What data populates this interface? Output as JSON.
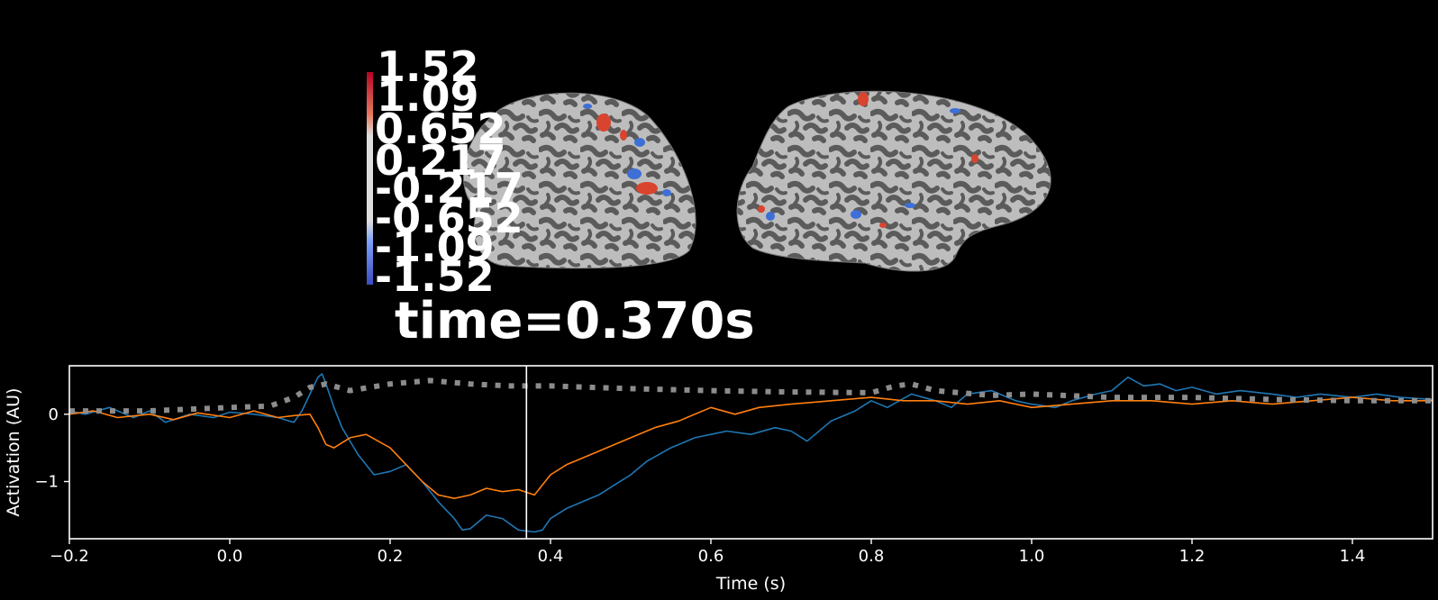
{
  "colors": {
    "background": "#000000",
    "series_1": "#1f77b4",
    "series_2": "#ff7f0e",
    "dotted": "#8c8c8c",
    "cortex_light": "#bdbdbd",
    "cortex_dark": "#5b5b5b",
    "activation_positive": "#d9442f",
    "activation_negative": "#3d6fd6"
  },
  "brain": {
    "colorbar_labels": [
      "1.52",
      "1.09",
      "0.652",
      "0.217",
      "-0.217",
      "-0.652",
      "-1.09",
      "-1.52"
    ],
    "time_label": "time=0.370s"
  },
  "chart_data": {
    "type": "line",
    "xlabel": "Time (s)",
    "ylabel": "Activation (AU)",
    "xlim": [
      -0.2,
      1.5
    ],
    "ylim": [
      -1.85,
      0.72
    ],
    "x_ticks": [
      -0.2,
      0.0,
      0.2,
      0.4,
      0.6,
      0.8,
      1.0,
      1.2,
      1.4
    ],
    "x_tick_labels": [
      "−0.2",
      "0.0",
      "0.2",
      "0.4",
      "0.6",
      "0.8",
      "1.0",
      "1.2",
      "1.4"
    ],
    "y_ticks": [
      0,
      -1
    ],
    "y_tick_labels": [
      "0",
      "−1"
    ],
    "cursor_time": 0.37,
    "grid": false,
    "series": [
      {
        "color": "#1f77b4",
        "style": "solid",
        "x": [
          -0.2,
          -0.18,
          -0.15,
          -0.12,
          -0.1,
          -0.08,
          -0.05,
          -0.02,
          0.0,
          0.03,
          0.06,
          0.08,
          0.09,
          0.1,
          0.11,
          0.115,
          0.12,
          0.13,
          0.14,
          0.16,
          0.18,
          0.2,
          0.22,
          0.24,
          0.26,
          0.28,
          0.29,
          0.3,
          0.32,
          0.34,
          0.36,
          0.38,
          0.39,
          0.4,
          0.42,
          0.44,
          0.46,
          0.48,
          0.5,
          0.52,
          0.55,
          0.58,
          0.6,
          0.62,
          0.65,
          0.68,
          0.7,
          0.72,
          0.73,
          0.75,
          0.78,
          0.8,
          0.82,
          0.85,
          0.88,
          0.9,
          0.92,
          0.95,
          0.98,
          1.0,
          1.03,
          1.05,
          1.08,
          1.1,
          1.12,
          1.14,
          1.16,
          1.18,
          1.2,
          1.23,
          1.26,
          1.3,
          1.33,
          1.36,
          1.4,
          1.43,
          1.46,
          1.5
        ],
        "y": [
          0.05,
          0.0,
          0.1,
          -0.05,
          0.05,
          -0.12,
          0.0,
          -0.05,
          0.03,
          0.0,
          -0.05,
          -0.12,
          0.05,
          0.3,
          0.55,
          0.6,
          0.45,
          0.1,
          -0.2,
          -0.6,
          -0.9,
          -0.85,
          -0.75,
          -1.0,
          -1.3,
          -1.55,
          -1.72,
          -1.7,
          -1.5,
          -1.55,
          -1.72,
          -1.75,
          -1.72,
          -1.55,
          -1.4,
          -1.3,
          -1.2,
          -1.05,
          -0.9,
          -0.7,
          -0.5,
          -0.35,
          -0.3,
          -0.25,
          -0.3,
          -0.2,
          -0.25,
          -0.4,
          -0.3,
          -0.1,
          0.05,
          0.2,
          0.1,
          0.3,
          0.2,
          0.1,
          0.3,
          0.35,
          0.2,
          0.15,
          0.1,
          0.2,
          0.3,
          0.35,
          0.55,
          0.42,
          0.45,
          0.35,
          0.4,
          0.3,
          0.35,
          0.3,
          0.25,
          0.3,
          0.25,
          0.3,
          0.25,
          0.22
        ]
      },
      {
        "color": "#ff7f0e",
        "style": "solid",
        "x": [
          -0.2,
          -0.17,
          -0.14,
          -0.1,
          -0.07,
          -0.04,
          0.0,
          0.03,
          0.06,
          0.08,
          0.1,
          0.11,
          0.12,
          0.13,
          0.15,
          0.17,
          0.2,
          0.22,
          0.24,
          0.26,
          0.28,
          0.3,
          0.32,
          0.34,
          0.36,
          0.38,
          0.4,
          0.42,
          0.45,
          0.48,
          0.5,
          0.53,
          0.56,
          0.6,
          0.63,
          0.66,
          0.7,
          0.75,
          0.8,
          0.84,
          0.88,
          0.92,
          0.96,
          1.0,
          1.05,
          1.1,
          1.15,
          1.2,
          1.25,
          1.3,
          1.35,
          1.4,
          1.45,
          1.5
        ],
        "y": [
          0.0,
          0.05,
          -0.05,
          0.0,
          -0.08,
          0.02,
          -0.05,
          0.05,
          -0.05,
          -0.02,
          0.0,
          -0.2,
          -0.45,
          -0.5,
          -0.35,
          -0.3,
          -0.5,
          -0.75,
          -1.0,
          -1.2,
          -1.25,
          -1.2,
          -1.1,
          -1.15,
          -1.12,
          -1.2,
          -0.9,
          -0.75,
          -0.6,
          -0.45,
          -0.35,
          -0.2,
          -0.1,
          0.1,
          0.0,
          0.1,
          0.15,
          0.2,
          0.25,
          0.2,
          0.2,
          0.15,
          0.2,
          0.1,
          0.15,
          0.2,
          0.2,
          0.15,
          0.2,
          0.15,
          0.2,
          0.25,
          0.2,
          0.2
        ]
      },
      {
        "color": "#8c8c8c",
        "style": "dotted",
        "x": [
          -0.2,
          -0.1,
          0.0,
          0.05,
          0.08,
          0.1,
          0.12,
          0.15,
          0.2,
          0.25,
          0.3,
          0.35,
          0.4,
          0.5,
          0.6,
          0.7,
          0.8,
          0.83,
          0.85,
          0.88,
          0.95,
          1.0,
          1.1,
          1.2,
          1.3,
          1.4,
          1.5
        ],
        "y": [
          0.05,
          0.05,
          0.1,
          0.12,
          0.25,
          0.4,
          0.45,
          0.35,
          0.45,
          0.5,
          0.45,
          0.42,
          0.42,
          0.38,
          0.35,
          0.33,
          0.32,
          0.42,
          0.45,
          0.35,
          0.28,
          0.3,
          0.25,
          0.25,
          0.22,
          0.2,
          0.2
        ]
      }
    ]
  }
}
